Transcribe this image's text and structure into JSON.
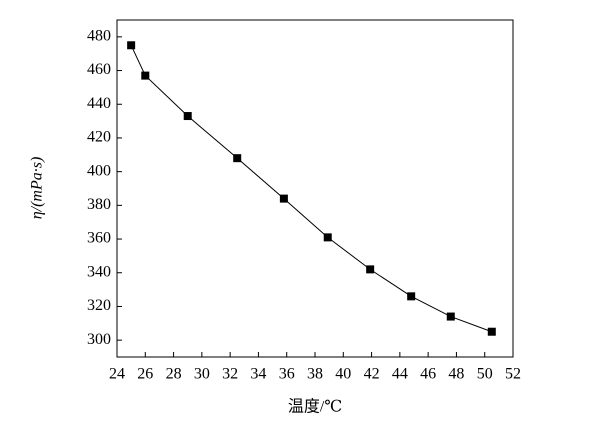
{
  "chart_data": {
    "type": "line",
    "xlabel": "温度/℃",
    "ylabel": "η/(mPa·s)",
    "x": [
      25.0,
      26.0,
      29.0,
      32.5,
      35.8,
      38.9,
      41.9,
      44.8,
      47.6,
      50.5
    ],
    "series": [
      {
        "color": "#000000",
        "values": [
          475,
          457,
          433,
          408,
          384,
          361,
          342,
          326,
          314,
          305
        ]
      }
    ],
    "xlim": [
      24,
      52
    ],
    "xticks": [
      24,
      26,
      28,
      30,
      32,
      34,
      36,
      38,
      40,
      42,
      44,
      46,
      48,
      50,
      52
    ],
    "ylim": [
      290,
      490
    ],
    "yticks": [
      300,
      320,
      340,
      360,
      380,
      400,
      420,
      440,
      460,
      480
    ],
    "grid": false,
    "marker": "square"
  }
}
